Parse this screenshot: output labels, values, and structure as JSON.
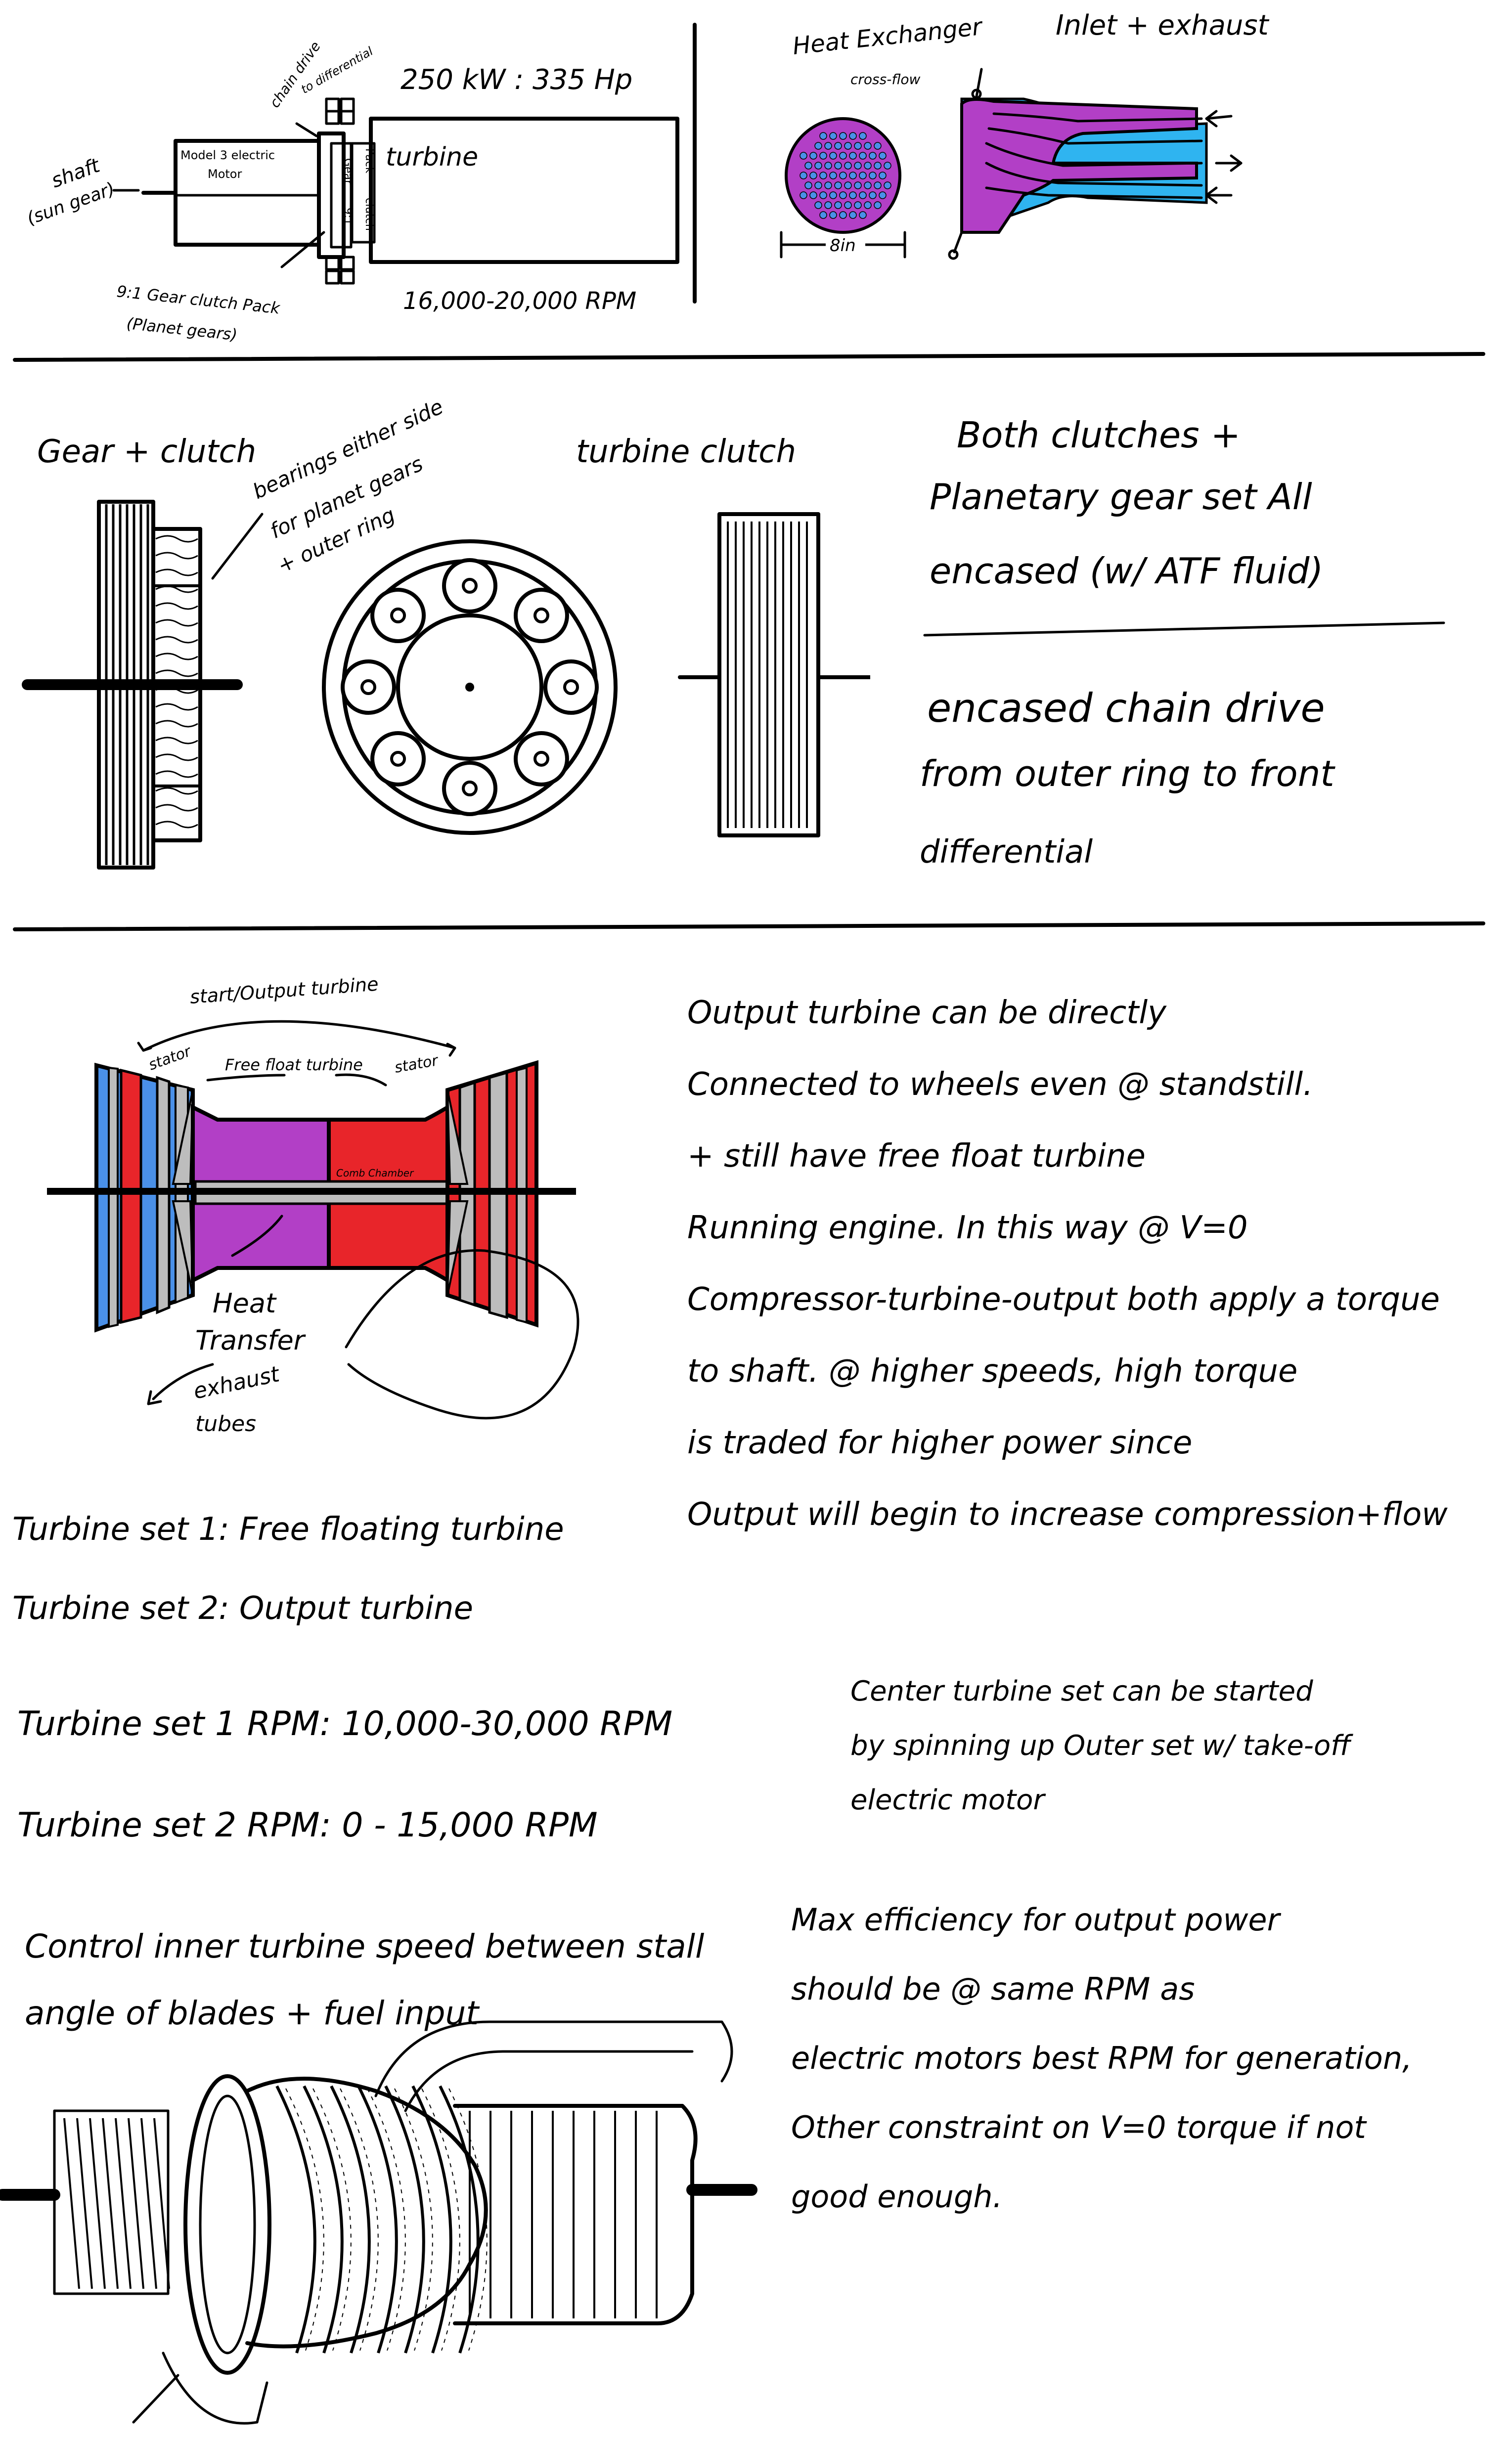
{
  "section1": {
    "shaft_label_1": "shaft",
    "shaft_label_2": "(sun gear)",
    "motor_label_1": "Model 3 electric",
    "motor_label_2": "Motor",
    "chain_drive_label_1": "chain drive",
    "chain_drive_label_2": "to differential",
    "power_label": "250 kW : 335 Hp",
    "gear_label": "Gear",
    "ratio_label": "9:1",
    "pack_label": "Pack",
    "clutch_label": "clutch",
    "turbine_label": "turbine",
    "rpm_label": "16,000-20,000 RPM",
    "gear_clutch_pack_1": "9:1 Gear clutch Pack",
    "gear_clutch_pack_2": "(Planet gears)",
    "heat_exchanger_title": "Heat Exchanger",
    "heat_exchanger_sub": "cross-flow",
    "dimension_label": "8in",
    "inlet_exhaust_title": "Inlet + exhaust"
  },
  "section2": {
    "gear_clutch_title": "Gear + clutch",
    "bearings_1": "bearings either side",
    "bearings_2": "for planet gears",
    "bearings_3": "+ outer ring",
    "turbine_clutch_title": "turbine clutch",
    "note_1_line1": "Both clutches +",
    "note_1_line2": "Planetary gear set All",
    "note_1_line3": "encased (w/ ATF fluid)",
    "note_2_line1": "encased chain drive",
    "note_2_line2": "from outer ring to front",
    "note_2_line3": "differential"
  },
  "section3": {
    "start_output_label": "start/Output turbine",
    "stator_left": "stator",
    "free_float_label": "Free float turbine",
    "stator_right": "stator",
    "comb_chamber": "Comb Chamber",
    "heat_transfer_1": "Heat",
    "heat_transfer_2": "Transfer",
    "heat_transfer_3": "exhaust",
    "heat_transfer_4": "tubes",
    "output_note": [
      "Output turbine can be directly",
      "Connected to wheels even @ standstill.",
      "+ still have free float turbine",
      "Running engine. In this way @ V=0",
      "Compressor-turbine-output both apply a torque",
      "to shaft. @ higher speeds, high torque",
      "is traded for higher power since",
      "Output will begin to increase compression+flow"
    ],
    "turbine_set_1": "Turbine set 1: Free floating turbine",
    "turbine_set_2": "Turbine set 2: Output turbine",
    "rpm_set_1": "Turbine set 1   RPM: 10,000-30,000 RPM",
    "rpm_set_2": "Turbine set 2   RPM: 0 - 15,000 RPM",
    "center_note": [
      "Center turbine set can be started",
      "by spinning up Outer set w/ take-off",
      "electric motor"
    ],
    "control_note": [
      "Control inner turbine speed between stall",
      "angle of blades + fuel input"
    ],
    "max_eff_note": [
      "Max efficiency for output power",
      "should be @ same RPM as",
      "electric motors best RPM for generation,",
      "Other constraint on V=0 torque if not",
      "good enough."
    ]
  },
  "colors": {
    "purple": "#b23fc6",
    "blue": "#4a90e8",
    "red": "#e8252a",
    "cyan": "#2fb4f0",
    "gray": "#bdbdbd",
    "ink": "#000000"
  }
}
